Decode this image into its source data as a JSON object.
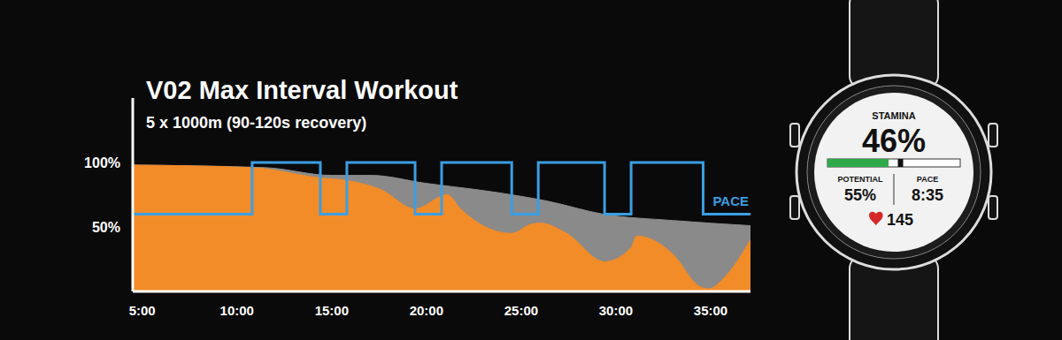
{
  "chart_data": {
    "type": "area",
    "title": "V02 Max Interval Workout",
    "subtitle": "5 x 1000m (90-120s recovery)",
    "xlim": [
      4.5,
      37.1
    ],
    "xticks": [
      {
        "value": 5,
        "label": "5:00"
      },
      {
        "value": 10,
        "label": "10:00"
      },
      {
        "value": 15,
        "label": "15:00"
      },
      {
        "value": 20,
        "label": "20:00"
      },
      {
        "value": 25,
        "label": "25:00"
      },
      {
        "value": 30,
        "label": "30:00"
      },
      {
        "value": 35,
        "label": "35:00"
      }
    ],
    "ylim": [
      0,
      150
    ],
    "yticks": [
      {
        "value": 50,
        "label": "50%"
      },
      {
        "value": 100,
        "label": "100%"
      }
    ],
    "grid": false,
    "series": [
      {
        "type": "area",
        "color": "#8a8a8a",
        "x": [
          4.5,
          11.5,
          15,
          17.1,
          19.9,
          23.6,
          26.4,
          29.3,
          33,
          37.1
        ],
        "values": [
          98,
          96,
          90,
          90,
          84,
          77,
          70,
          60,
          55,
          51
        ]
      },
      {
        "type": "area",
        "color": "#f28c28",
        "x": [
          4.5,
          10.8,
          14.4,
          15.8,
          17.6,
          19.4,
          21.1,
          21.8,
          24.5,
          25.5,
          26,
          27.4,
          29.4,
          30.8,
          31.1,
          33,
          34.4,
          34.9,
          35.8,
          37.1
        ],
        "values": [
          98,
          96,
          88,
          86,
          79,
          64,
          75,
          64,
          45,
          52,
          53,
          45,
          23,
          34,
          43,
          29,
          4,
          2,
          12,
          40
        ]
      },
      {
        "type": "line",
        "name": "PACE",
        "color": "#3b9ee3",
        "line_style": "step",
        "x": [
          4.5,
          10.8,
          14.4,
          15.8,
          19.4,
          20.8,
          24.5,
          25.9,
          29.4,
          30.8,
          34.6,
          37.1
        ],
        "values": [
          60,
          100,
          60,
          100,
          60,
          100,
          60,
          100,
          60,
          100,
          60,
          60
        ]
      }
    ]
  },
  "watch": {
    "stamina": {
      "label": "STAMINA",
      "value": 46,
      "value_label": "46%"
    },
    "potential": {
      "label": "POTENTIAL",
      "value": 55,
      "value_label": "55%"
    },
    "pace": {
      "label": "PACE",
      "value": "8:35"
    },
    "heart_rate": 145
  }
}
